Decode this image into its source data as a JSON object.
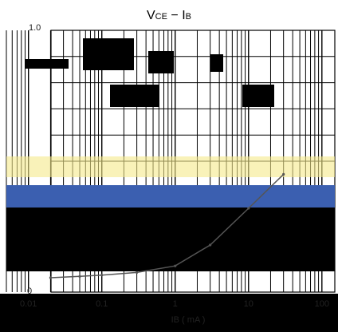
{
  "chart_data": {
    "type": "line",
    "title": "VCE - IB",
    "title_main": "V",
    "title_sub": "CE",
    "title_sep": " − ",
    "title_main2": "I",
    "title_sub2": "B",
    "xlabel": "IB ( mA )",
    "xscale": "log",
    "xlim": [
      0.005,
      150
    ],
    "ylim": [
      0,
      1.0
    ],
    "x_ticks": [
      0.01,
      0.1,
      1,
      10,
      100
    ],
    "x_tick_labels": [
      "0.01",
      "0.1",
      "1",
      "10",
      "100"
    ],
    "y_tick_labels": [
      "1.0",
      "0"
    ],
    "grid": true,
    "series": [
      {
        "x": [
          0.02,
          0.05,
          0.1,
          0.3,
          1,
          3,
          10,
          30
        ],
        "y": [
          0.055,
          0.06,
          0.065,
          0.075,
          0.1,
          0.18,
          0.32,
          0.45
        ]
      }
    ]
  },
  "colors": {
    "band_blue": "#3b5fb0",
    "band_yellow": "#f5e98a",
    "curve": "#555555",
    "dark_panel": "#000000"
  }
}
